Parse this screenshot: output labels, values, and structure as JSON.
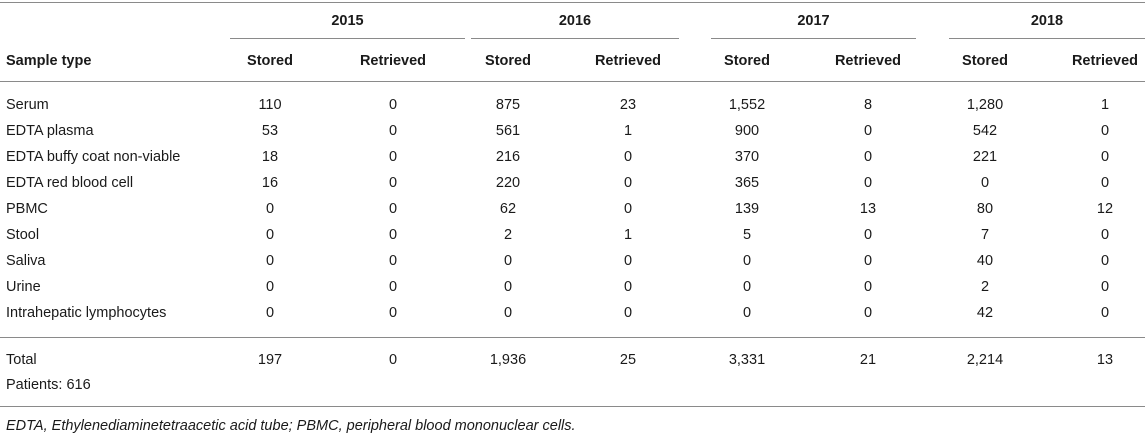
{
  "table": {
    "stub_header": "Sample type",
    "years": [
      "2015",
      "2016",
      "2017",
      "2018"
    ],
    "subheaders": [
      "Stored",
      "Retrieved",
      "Stored",
      "Retrieved",
      "Stored",
      "Retrieved",
      "Stored",
      "Retrieved"
    ],
    "rows": [
      {
        "label": "Serum",
        "values": [
          "110",
          "0",
          "875",
          "23",
          "1,552",
          "8",
          "1,280",
          "1"
        ]
      },
      {
        "label": "EDTA plasma",
        "values": [
          "53",
          "0",
          "561",
          "1",
          "900",
          "0",
          "542",
          "0"
        ]
      },
      {
        "label": "EDTA buffy coat non-viable",
        "values": [
          "18",
          "0",
          "216",
          "0",
          "370",
          "0",
          "221",
          "0"
        ]
      },
      {
        "label": "EDTA red blood cell",
        "values": [
          "16",
          "0",
          "220",
          "0",
          "365",
          "0",
          "0",
          "0"
        ]
      },
      {
        "label": "PBMC",
        "values": [
          "0",
          "0",
          "62",
          "0",
          "139",
          "13",
          "80",
          "12"
        ]
      },
      {
        "label": "Stool",
        "values": [
          "0",
          "0",
          "2",
          "1",
          "5",
          "0",
          "7",
          "0"
        ]
      },
      {
        "label": "Saliva",
        "values": [
          "0",
          "0",
          "0",
          "0",
          "0",
          "0",
          "40",
          "0"
        ]
      },
      {
        "label": "Urine",
        "values": [
          "0",
          "0",
          "0",
          "0",
          "0",
          "0",
          "2",
          "0"
        ]
      },
      {
        "label": "Intrahepatic lymphocytes",
        "values": [
          "0",
          "0",
          "0",
          "0",
          "0",
          "0",
          "42",
          "0"
        ]
      }
    ],
    "total": {
      "label": "Total",
      "values": [
        "197",
        "0",
        "1,936",
        "25",
        "3,331",
        "21",
        "2,214",
        "13"
      ]
    },
    "patients": "Patients: 616",
    "footnote": "EDTA, Ethylenediaminetetraacetic acid tube; PBMC, peripheral blood mononuclear cells."
  }
}
